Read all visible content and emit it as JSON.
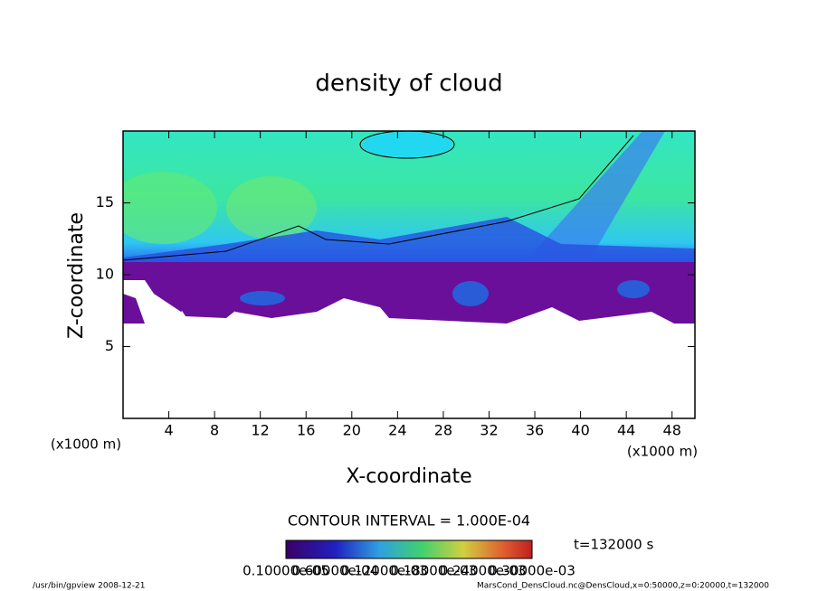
{
  "chart_data": {
    "type": "heatmap",
    "title": "density of cloud",
    "xlabel": "X-coordinate",
    "ylabel": "Z-coordinate",
    "x_unit": "(x1000 m)",
    "y_unit": "(x1000 m)",
    "xlim": [
      0,
      50
    ],
    "ylim": [
      0,
      20
    ],
    "xticks": [
      4,
      8,
      12,
      16,
      20,
      24,
      28,
      32,
      36,
      40,
      44,
      48
    ],
    "yticks": [
      5,
      10,
      15
    ],
    "contour_interval": "CONTOUR INTERVAL = 1.000E-04",
    "time": "t=132000 s",
    "colorbar_labels": [
      "0.10000e-05",
      "0.60000e-04",
      "0.12000e-03",
      "0.18000e-03",
      "0.24000e-03",
      "0.30000e-03"
    ],
    "footer_left": "/usr/bin/gpview   2008-12-21",
    "footer_right": "MarsCond_DensCloud.nc@DensCloud,x=0:50000,z=0:20000,t=132000"
  }
}
